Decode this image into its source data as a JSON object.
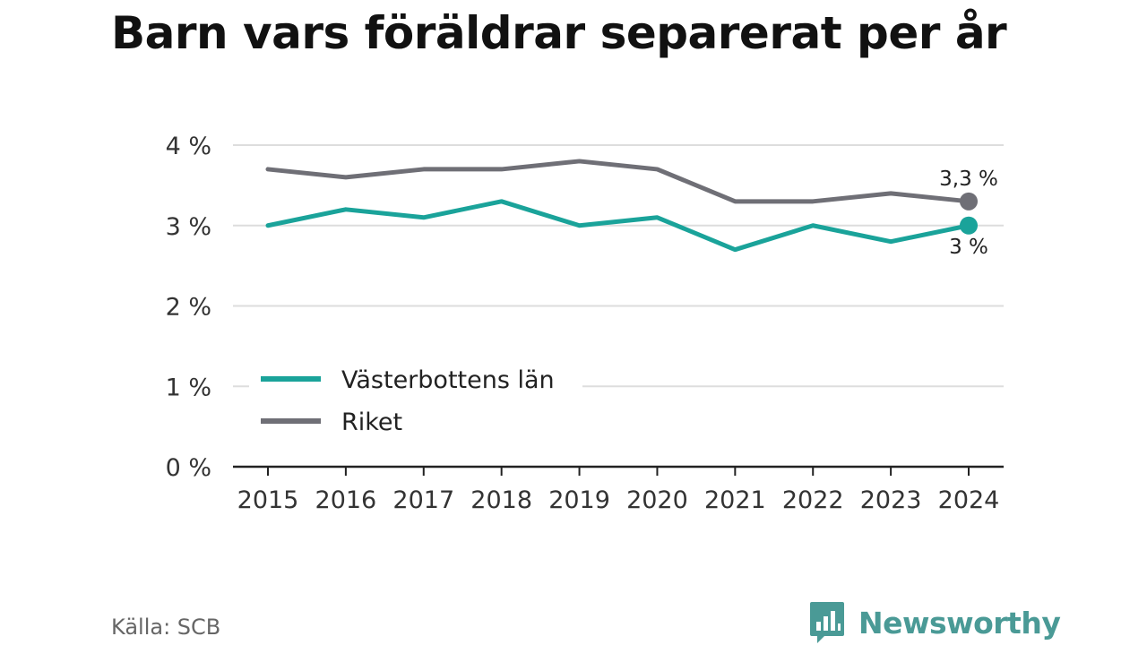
{
  "title": "Barn vars föräldrar separerat per år",
  "source": "Källa: SCB",
  "brand": {
    "name": "Newsworthy",
    "color": "#4a9a96",
    "icon": "bar-chart-bubble-icon"
  },
  "chart_data": {
    "type": "line",
    "title": "Barn vars föräldrar separerat per år",
    "xlabel": "",
    "ylabel": "",
    "x": [
      "2015",
      "2016",
      "2017",
      "2018",
      "2019",
      "2020",
      "2021",
      "2022",
      "2023",
      "2024"
    ],
    "ylim": [
      0,
      4
    ],
    "yticks": [
      0,
      1,
      2,
      3,
      4
    ],
    "ytick_labels": [
      "0 %",
      "1 %",
      "2 %",
      "3 %",
      "4 %"
    ],
    "grid": true,
    "legend_position": "lower-left",
    "series": [
      {
        "name": "Västerbottens län",
        "color": "#1aa39a",
        "values": [
          3.0,
          3.2,
          3.1,
          3.3,
          3.0,
          3.1,
          2.7,
          3.0,
          2.8,
          3.0
        ],
        "end_label": "3 %"
      },
      {
        "name": "Riket",
        "color": "#6f6f76",
        "values": [
          3.7,
          3.6,
          3.7,
          3.7,
          3.8,
          3.7,
          3.3,
          3.3,
          3.4,
          3.3
        ],
        "end_label": "3,3 %"
      }
    ]
  }
}
